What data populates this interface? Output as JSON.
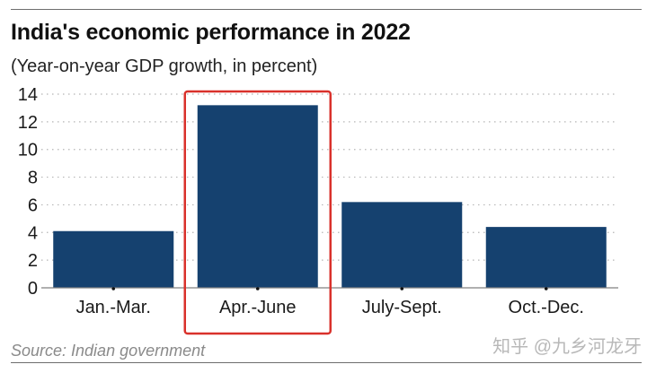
{
  "chart_data": {
    "type": "bar",
    "title": "India's economic performance in 2022",
    "subtitle": "(Year-on-year GDP growth, in percent)",
    "categories": [
      "Jan.-Mar.",
      "Apr.-June",
      "July-Sept.",
      "Oct.-Dec."
    ],
    "values": [
      4.1,
      13.2,
      6.2,
      4.4
    ],
    "xlabel": "",
    "ylabel": "",
    "ylim": [
      0,
      14
    ],
    "yticks": [
      0,
      2,
      4,
      6,
      8,
      10,
      12,
      14
    ],
    "grid": true,
    "highlight_category": "Apr.-June",
    "source": "Source: Indian government"
  },
  "watermark": "知乎 @九乡河龙牙",
  "colors": {
    "bar": "#15416f",
    "highlight": "#d9312b",
    "grid": "#b5b5b5",
    "axis": "#808080"
  }
}
